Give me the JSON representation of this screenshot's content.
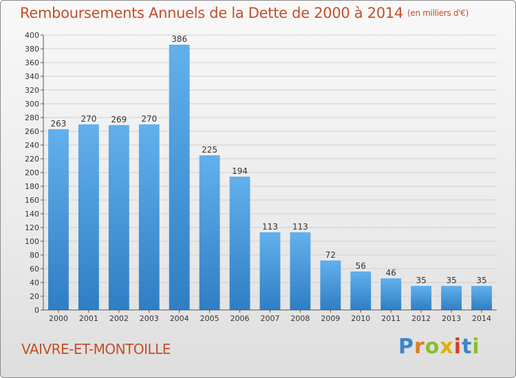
{
  "page": {
    "title": "Remboursements Annuels de la Dette de 2000 à 2014",
    "unit": "(en milliers d'€)",
    "commune": "VAIVRE-ET-MONTOILLE",
    "logo": "Proxiti"
  },
  "chart_data": {
    "type": "bar",
    "title": "Remboursements Annuels de la Dette de 2000 à 2014",
    "subtitle": "(en milliers d'€)",
    "xlabel": "",
    "ylabel": "",
    "categories": [
      "2000",
      "2001",
      "2002",
      "2003",
      "2004",
      "2005",
      "2006",
      "2007",
      "2008",
      "2009",
      "2010",
      "2011",
      "2012",
      "2013",
      "2014"
    ],
    "values": [
      263,
      270,
      269,
      270,
      386,
      225,
      194,
      113,
      113,
      72,
      56,
      46,
      35,
      35,
      35
    ],
    "ylim": [
      0,
      400
    ],
    "ytick_step": 20,
    "grid": true,
    "legend": "none",
    "colors": {
      "bar_top": "#62b0ec",
      "bar_bottom": "#2f7ec4",
      "grid": "#cfcfcf",
      "axis": "#555555",
      "title": "#c0502a"
    }
  }
}
